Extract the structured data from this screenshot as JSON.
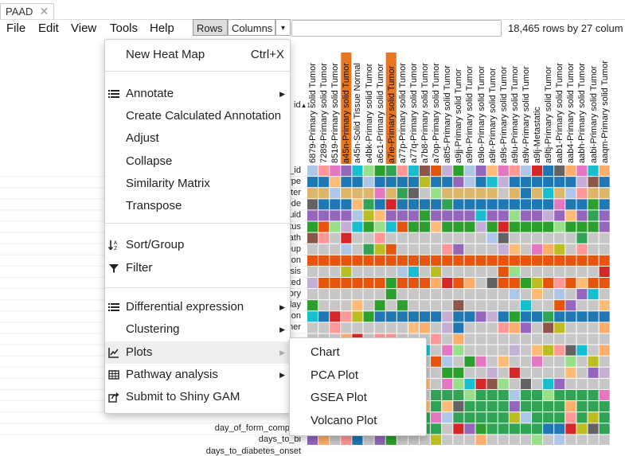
{
  "tab": {
    "title": "PAAD",
    "close": "✕"
  },
  "menubar": [
    "File",
    "Edit",
    "View",
    "Tools",
    "Help"
  ],
  "toolbar": {
    "rows_label": "Rows",
    "columns_label": "Columns",
    "dropdown": "▾",
    "search_value": "",
    "row_count": "18,465 rows by 27 colum"
  },
  "column_headers": [
    "6879-Primary solid Tumor",
    "7289-Primary solid Tumor",
    "8519-Primary solid Tumor",
    "a45n-Primary solid Tumor",
    "a45n-Solid Tissue Normal",
    "a4bk-Primary solid Tumor",
    "a6c1-Primary solid Tumor",
    "a7ie-Primary solid Tumor",
    "a77p-Primary solid Tumor",
    "a77q-Primary solid Tumor",
    "a7b8-Primary solid Tumor",
    "a7op-Primary solid Tumor",
    "a8t5-Primary solid Tumor",
    "a9jj-Primary solid Tumor",
    "a9ln-Primary solid Tumor",
    "a9lo-Primary solid Tumor",
    "a9lr-Primary solid Tumor",
    "a9ls-Primary solid Tumor",
    "a9lu-Primary solid Tumor",
    "a9lv-Primary solid Tumor",
    "a9lj-Metastatic",
    "a9ltj-Primary solid Tumor",
    "aab1-Primary solid Tumor",
    "aab4-Primary solid Tumor",
    "aabh-Primary solid Tumor",
    "aabi-Primary solid Tumor",
    "aaqm-Primary solid Tumor"
  ],
  "id_header": "id",
  "row_labels": [
    "_id",
    "ype",
    "ter",
    "ode",
    "uid",
    "tus",
    "ath",
    "oup",
    "ion",
    "sis",
    "ted",
    "ory",
    "lay",
    "ion",
    "ner",
    "",
    "",
    "",
    "",
    "",
    "",
    "",
    "",
    "day_of_form_completi",
    "days_to_bi",
    "days_to_diabetes_onset"
  ],
  "colors": {
    "highlight_col": "#e8761e",
    "menu_hover": "#eeeeee"
  },
  "menu": {
    "items": [
      {
        "label": "New Heat Map",
        "shortcut": "Ctrl+X"
      },
      {
        "label": "Annotate",
        "icon": "list-icon",
        "arrow": "▶"
      },
      {
        "label": "Create Calculated Annotation"
      },
      {
        "label": "Adjust"
      },
      {
        "label": "Collapse"
      },
      {
        "label": "Similarity Matrix"
      },
      {
        "label": "Transpose"
      },
      {
        "label": "Sort/Group",
        "icon": "sort-az-icon"
      },
      {
        "label": "Filter",
        "icon": "filter-icon"
      },
      {
        "label": "Differential expression",
        "icon": "list-icon",
        "arrow": "▶"
      },
      {
        "label": "Clustering",
        "arrow": "▶"
      },
      {
        "label": "Plots",
        "icon": "line-chart-icon",
        "arrow": "▶"
      },
      {
        "label": "Pathway analysis",
        "icon": "table-icon",
        "arrow": "▶"
      },
      {
        "label": "Submit to Shiny GAM",
        "icon": "share-icon"
      }
    ]
  },
  "submenu": [
    "Chart",
    "PCA Plot",
    "GSEA Plot",
    "Volcano Plot"
  ]
}
